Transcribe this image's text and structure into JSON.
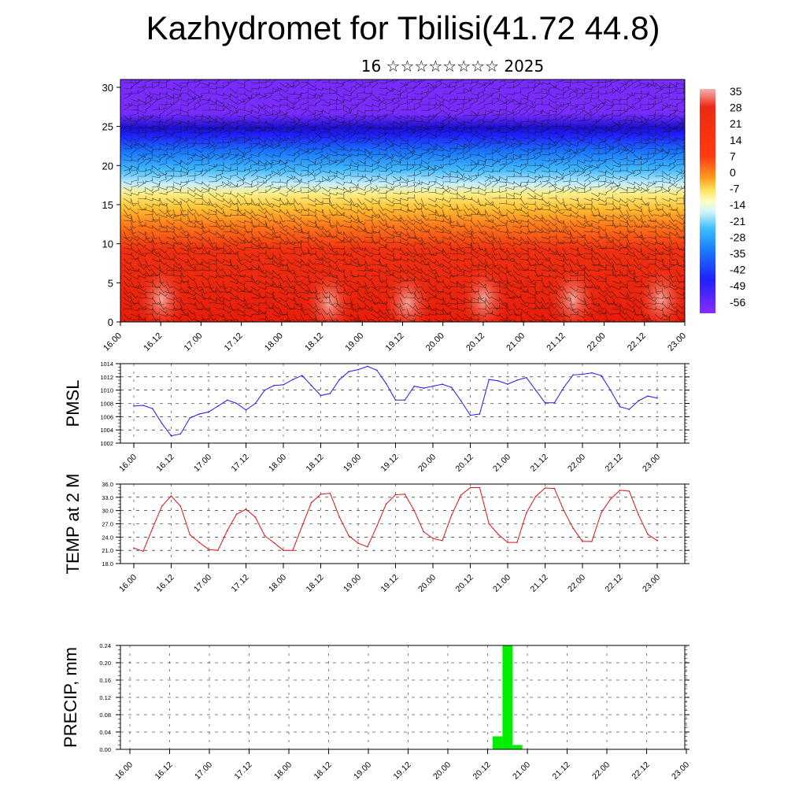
{
  "page": {
    "title": "Kazhydromet for Tbilisi(41.72 44.8)",
    "subtitle": "16 ☆☆☆☆☆☆☆☆ 2025"
  },
  "chart_data": [
    {
      "type": "heatmap",
      "name_hint": "cross-section",
      "ylim": [
        0,
        31
      ],
      "yticks": [
        0,
        5,
        10,
        15,
        20,
        25,
        30
      ],
      "x_tick_labels": [
        "16.00",
        "16.12",
        "17.00",
        "17.12",
        "18.00",
        "18.12",
        "19.00",
        "19.12",
        "20.00",
        "20.12",
        "21.00",
        "21.12",
        "22.00",
        "22.12",
        "23.00"
      ],
      "colorbar_labels": [
        "35",
        "28",
        "21",
        "14",
        "7",
        "0",
        "-7",
        "-14",
        "-21",
        "-28",
        "-35",
        "-42",
        "-49",
        "-56"
      ],
      "colors": {
        "hot": "#e8200c",
        "warm": "#ffd040",
        "cold": "#1a8cff",
        "coldest": "#7a2cff",
        "bright": "#f4a0a0"
      }
    },
    {
      "type": "line",
      "ylabel": "PMSL",
      "ylim": [
        1002,
        1014
      ],
      "yticks": [
        "1002",
        "1004",
        "1006",
        "1008",
        "1010",
        "1012",
        "1014"
      ],
      "x_tick_labels": [
        "16.00",
        "16.12",
        "17.00",
        "17.12",
        "18.00",
        "18.12",
        "19.00",
        "19.12",
        "20.00",
        "20.12",
        "21.00",
        "21.12",
        "22.00",
        "22.12",
        "23.00"
      ],
      "color": "#1a1aff",
      "values": [
        1007.6,
        1007.7,
        1007.2,
        1005.0,
        1003.1,
        1003.4,
        1005.8,
        1006.4,
        1006.7,
        1007.6,
        1008.5,
        1008.0,
        1007.0,
        1008.0,
        1010.0,
        1010.7,
        1010.8,
        1011.6,
        1012.2,
        1010.7,
        1009.2,
        1009.5,
        1011.6,
        1012.8,
        1013.1,
        1013.6,
        1013.0,
        1011.0,
        1008.5,
        1008.5,
        1010.6,
        1010.3,
        1010.6,
        1010.9,
        1010.4,
        1008.4,
        1006.2,
        1006.4,
        1011.6,
        1011.4,
        1010.9,
        1011.5,
        1011.9,
        1010.0,
        1008.1,
        1008.1,
        1010.4,
        1012.3,
        1012.4,
        1012.6,
        1012.2,
        1010.0,
        1007.5,
        1007.1,
        1008.4,
        1009.1,
        1008.8
      ]
    },
    {
      "type": "line",
      "ylabel": "TEMP at 2 M",
      "ylim": [
        18,
        36
      ],
      "yticks": [
        "18.0",
        "21.0",
        "24.0",
        "27.0",
        "30.0",
        "33.0",
        "36.0"
      ],
      "x_tick_labels": [
        "16.00",
        "16.12",
        "17.00",
        "17.12",
        "18.00",
        "18.12",
        "19.00",
        "19.12",
        "20.00",
        "20.12",
        "21.00",
        "21.12",
        "22.00",
        "22.12",
        "23.00"
      ],
      "color": "#dd1111",
      "values": [
        21.5,
        20.8,
        26.0,
        31.0,
        33.3,
        31.0,
        24.5,
        22.8,
        21.2,
        21.0,
        25.5,
        29.2,
        30.3,
        28.5,
        24.3,
        22.7,
        21.0,
        21.0,
        26.5,
        31.8,
        33.7,
        33.9,
        28.5,
        24.3,
        22.6,
        21.8,
        26.5,
        31.5,
        33.6,
        33.7,
        30.0,
        25.2,
        23.7,
        23.2,
        29.0,
        33.5,
        35.2,
        35.2,
        27.0,
        24.6,
        22.8,
        22.8,
        29.5,
        33.2,
        35.1,
        35.0,
        30.0,
        26.0,
        23.0,
        23.0,
        29.5,
        32.6,
        34.6,
        34.4,
        29.0,
        24.6,
        23.2
      ]
    },
    {
      "type": "bar",
      "ylabel": "PRECIP, mm",
      "ylim": [
        0,
        0.24
      ],
      "yticks": [
        "0.00",
        "0.04",
        "0.08",
        "0.12",
        "0.16",
        "0.20",
        "0.24"
      ],
      "x_tick_labels": [
        "16.00",
        "16.12",
        "17.00",
        "17.12",
        "18.00",
        "18.12",
        "19.00",
        "19.12",
        "20.00",
        "20.12",
        "21.00",
        "21.12",
        "22.00",
        "22.12",
        "23.00"
      ],
      "color": "#00ee00",
      "bars": [
        {
          "x": "20.15",
          "value": 0.03
        },
        {
          "x": "20.18",
          "value": 0.24
        },
        {
          "x": "20.21",
          "value": 0.01
        }
      ]
    }
  ]
}
